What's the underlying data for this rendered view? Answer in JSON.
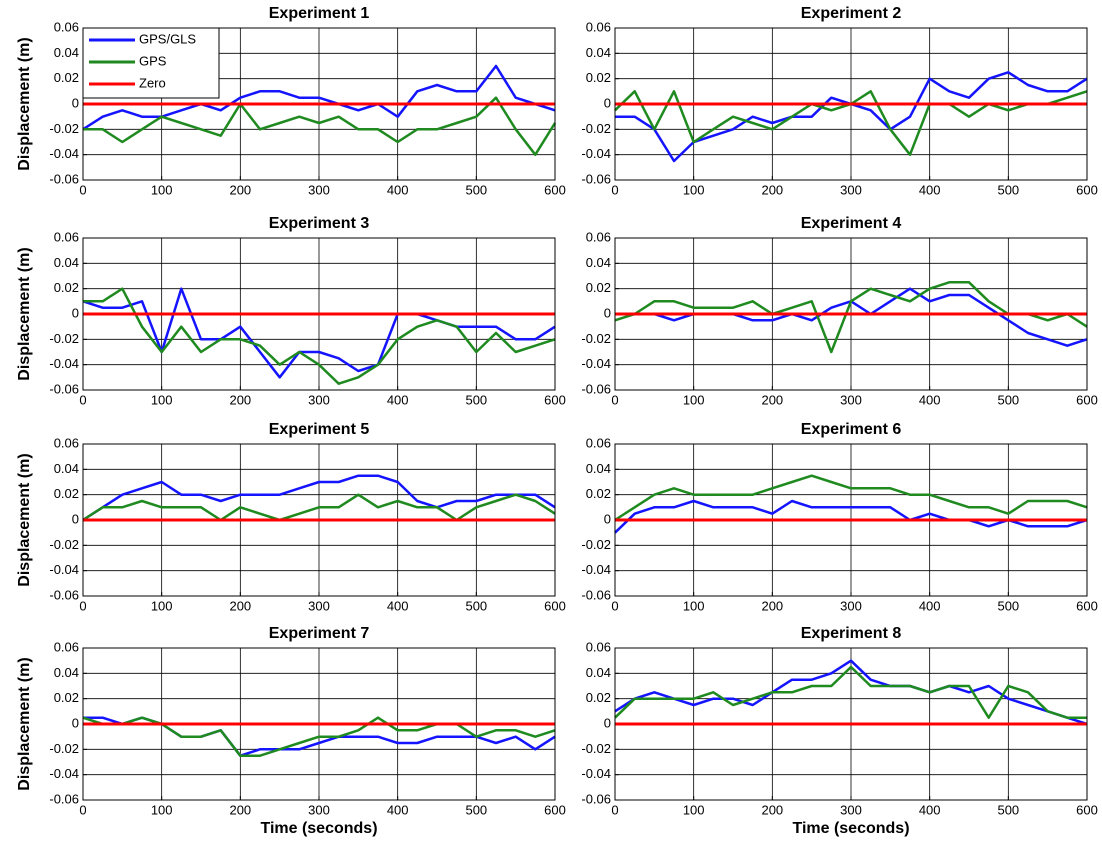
{
  "chart_data": [
    {
      "type": "line",
      "title": "Experiment 1",
      "ylabel": "Displacement (m)",
      "legend": "upper left",
      "grid": true,
      "x": [
        0,
        25,
        50,
        75,
        100,
        125,
        150,
        175,
        200,
        225,
        250,
        275,
        300,
        325,
        350,
        375,
        400,
        425,
        450,
        475,
        500,
        525,
        550,
        575,
        600
      ],
      "xlim": [
        0,
        600
      ],
      "xticks": [
        0,
        100,
        200,
        300,
        400,
        500,
        600
      ],
      "ylim": [
        -0.06,
        0.06
      ],
      "yticks": [
        -0.06,
        -0.04,
        -0.02,
        0,
        0.02,
        0.04,
        0.06
      ],
      "series": [
        {
          "name": "GPS/GLS",
          "color": "#1414ff",
          "values": [
            -0.02,
            -0.01,
            -0.005,
            -0.01,
            -0.01,
            -0.005,
            0,
            -0.005,
            0.005,
            0.01,
            0.01,
            0.005,
            0.005,
            0,
            -0.005,
            0,
            -0.01,
            0.01,
            0.015,
            0.01,
            0.01,
            0.03,
            0.005,
            0,
            -0.005
          ]
        },
        {
          "name": "GPS",
          "color": "#1f8a1f",
          "values": [
            -0.02,
            -0.02,
            -0.03,
            -0.02,
            -0.01,
            -0.015,
            -0.02,
            -0.025,
            0,
            -0.02,
            -0.015,
            -0.01,
            -0.015,
            -0.01,
            -0.02,
            -0.02,
            -0.03,
            -0.02,
            -0.02,
            -0.015,
            -0.01,
            0.005,
            -0.02,
            -0.04,
            -0.015
          ]
        },
        {
          "name": "Zero",
          "color": "#ff0000",
          "values": [
            0,
            0,
            0,
            0,
            0,
            0,
            0,
            0,
            0,
            0,
            0,
            0,
            0,
            0,
            0,
            0,
            0,
            0,
            0,
            0,
            0,
            0,
            0,
            0,
            0
          ]
        }
      ]
    },
    {
      "type": "line",
      "title": "Experiment 2",
      "grid": true,
      "x": [
        0,
        25,
        50,
        75,
        100,
        125,
        150,
        175,
        200,
        225,
        250,
        275,
        300,
        325,
        350,
        375,
        400,
        425,
        450,
        475,
        500,
        525,
        550,
        575,
        600
      ],
      "xlim": [
        0,
        600
      ],
      "xticks": [
        0,
        100,
        200,
        300,
        400,
        500,
        600
      ],
      "ylim": [
        -0.06,
        0.06
      ],
      "yticks": [
        -0.06,
        -0.04,
        -0.02,
        0,
        0.02,
        0.04,
        0.06
      ],
      "series": [
        {
          "color": "#1414ff",
          "values": [
            -0.01,
            -0.01,
            -0.02,
            -0.045,
            -0.03,
            -0.025,
            -0.02,
            -0.01,
            -0.015,
            -0.01,
            -0.01,
            0.005,
            0,
            -0.005,
            -0.02,
            -0.01,
            0.02,
            0.01,
            0.005,
            0.02,
            0.025,
            0.015,
            0.01,
            0.01,
            0.02
          ]
        },
        {
          "color": "#1f8a1f",
          "values": [
            -0.005,
            0.01,
            -0.02,
            0.01,
            -0.03,
            -0.02,
            -0.01,
            -0.015,
            -0.02,
            -0.01,
            0,
            -0.005,
            0,
            0.01,
            -0.02,
            -0.04,
            0,
            0,
            -0.01,
            0,
            -0.005,
            0,
            0,
            0.005,
            0.01
          ]
        },
        {
          "color": "#ff0000",
          "values": [
            0,
            0,
            0,
            0,
            0,
            0,
            0,
            0,
            0,
            0,
            0,
            0,
            0,
            0,
            0,
            0,
            0,
            0,
            0,
            0,
            0,
            0,
            0,
            0,
            0
          ]
        }
      ]
    },
    {
      "type": "line",
      "title": "Experiment 3",
      "ylabel": "Displacement (m)",
      "grid": true,
      "x": [
        0,
        25,
        50,
        75,
        100,
        125,
        150,
        175,
        200,
        225,
        250,
        275,
        300,
        325,
        350,
        375,
        400,
        425,
        450,
        475,
        500,
        525,
        550,
        575,
        600
      ],
      "xlim": [
        0,
        600
      ],
      "xticks": [
        0,
        100,
        200,
        300,
        400,
        500,
        600
      ],
      "ylim": [
        -0.06,
        0.06
      ],
      "yticks": [
        -0.06,
        -0.04,
        -0.02,
        0,
        0.02,
        0.04,
        0.06
      ],
      "series": [
        {
          "color": "#1414ff",
          "values": [
            0.01,
            0.005,
            0.005,
            0.01,
            -0.03,
            0.02,
            -0.02,
            -0.02,
            -0.01,
            -0.03,
            -0.05,
            -0.03,
            -0.03,
            -0.035,
            -0.045,
            -0.04,
            0,
            0,
            -0.005,
            -0.01,
            -0.01,
            -0.01,
            -0.02,
            -0.02,
            -0.01
          ]
        },
        {
          "color": "#1f8a1f",
          "values": [
            0.01,
            0.01,
            0.02,
            -0.01,
            -0.03,
            -0.01,
            -0.03,
            -0.02,
            -0.02,
            -0.025,
            -0.04,
            -0.03,
            -0.04,
            -0.055,
            -0.05,
            -0.04,
            -0.02,
            -0.01,
            -0.005,
            -0.01,
            -0.03,
            -0.015,
            -0.03,
            -0.025,
            -0.02
          ]
        },
        {
          "color": "#ff0000",
          "values": [
            0,
            0,
            0,
            0,
            0,
            0,
            0,
            0,
            0,
            0,
            0,
            0,
            0,
            0,
            0,
            0,
            0,
            0,
            0,
            0,
            0,
            0,
            0,
            0,
            0
          ]
        }
      ]
    },
    {
      "type": "line",
      "title": "Experiment 4",
      "grid": true,
      "x": [
        0,
        25,
        50,
        75,
        100,
        125,
        150,
        175,
        200,
        225,
        250,
        275,
        300,
        325,
        350,
        375,
        400,
        425,
        450,
        475,
        500,
        525,
        550,
        575,
        600
      ],
      "xlim": [
        0,
        600
      ],
      "xticks": [
        0,
        100,
        200,
        300,
        400,
        500,
        600
      ],
      "ylim": [
        -0.06,
        0.06
      ],
      "yticks": [
        -0.06,
        -0.04,
        -0.02,
        0,
        0.02,
        0.04,
        0.06
      ],
      "series": [
        {
          "color": "#1414ff",
          "values": [
            0,
            0,
            0,
            -0.005,
            0,
            0,
            0,
            -0.005,
            -0.005,
            0,
            -0.005,
            0.005,
            0.01,
            0,
            0.01,
            0.02,
            0.01,
            0.015,
            0.015,
            0.005,
            -0.005,
            -0.015,
            -0.02,
            -0.025,
            -0.02
          ]
        },
        {
          "color": "#1f8a1f",
          "values": [
            -0.005,
            0,
            0.01,
            0.01,
            0.005,
            0.005,
            0.005,
            0.01,
            0,
            0.005,
            0.01,
            -0.03,
            0.01,
            0.02,
            0.015,
            0.01,
            0.02,
            0.025,
            0.025,
            0.01,
            0,
            0,
            -0.005,
            0,
            -0.01
          ]
        },
        {
          "color": "#ff0000",
          "values": [
            0,
            0,
            0,
            0,
            0,
            0,
            0,
            0,
            0,
            0,
            0,
            0,
            0,
            0,
            0,
            0,
            0,
            0,
            0,
            0,
            0,
            0,
            0,
            0,
            0
          ]
        }
      ]
    },
    {
      "type": "line",
      "title": "Experiment 5",
      "ylabel": "Displacement (m)",
      "grid": true,
      "x": [
        0,
        25,
        50,
        75,
        100,
        125,
        150,
        175,
        200,
        225,
        250,
        275,
        300,
        325,
        350,
        375,
        400,
        425,
        450,
        475,
        500,
        525,
        550,
        575,
        600
      ],
      "xlim": [
        0,
        600
      ],
      "xticks": [
        0,
        100,
        200,
        300,
        400,
        500,
        600
      ],
      "ylim": [
        -0.06,
        0.06
      ],
      "yticks": [
        -0.06,
        -0.04,
        -0.02,
        0,
        0.02,
        0.04,
        0.06
      ],
      "series": [
        {
          "color": "#1414ff",
          "values": [
            0,
            0.01,
            0.02,
            0.025,
            0.03,
            0.02,
            0.02,
            0.015,
            0.02,
            0.02,
            0.02,
            0.025,
            0.03,
            0.03,
            0.035,
            0.035,
            0.03,
            0.015,
            0.01,
            0.015,
            0.015,
            0.02,
            0.02,
            0.02,
            0.01
          ]
        },
        {
          "color": "#1f8a1f",
          "values": [
            0,
            0.01,
            0.01,
            0.015,
            0.01,
            0.01,
            0.01,
            0,
            0.01,
            0.005,
            0,
            0.005,
            0.01,
            0.01,
            0.02,
            0.01,
            0.015,
            0.01,
            0.01,
            0,
            0.01,
            0.015,
            0.02,
            0.015,
            0.005
          ]
        },
        {
          "color": "#ff0000",
          "values": [
            0,
            0,
            0,
            0,
            0,
            0,
            0,
            0,
            0,
            0,
            0,
            0,
            0,
            0,
            0,
            0,
            0,
            0,
            0,
            0,
            0,
            0,
            0,
            0,
            0
          ]
        }
      ]
    },
    {
      "type": "line",
      "title": "Experiment 6",
      "grid": true,
      "x": [
        0,
        25,
        50,
        75,
        100,
        125,
        150,
        175,
        200,
        225,
        250,
        275,
        300,
        325,
        350,
        375,
        400,
        425,
        450,
        475,
        500,
        525,
        550,
        575,
        600
      ],
      "xlim": [
        0,
        600
      ],
      "xticks": [
        0,
        100,
        200,
        300,
        400,
        500,
        600
      ],
      "ylim": [
        -0.06,
        0.06
      ],
      "yticks": [
        -0.06,
        -0.04,
        -0.02,
        0,
        0.02,
        0.04,
        0.06
      ],
      "series": [
        {
          "color": "#1414ff",
          "values": [
            -0.01,
            0.005,
            0.01,
            0.01,
            0.015,
            0.01,
            0.01,
            0.01,
            0.005,
            0.015,
            0.01,
            0.01,
            0.01,
            0.01,
            0.01,
            0,
            0.005,
            0,
            0,
            -0.005,
            0,
            -0.005,
            -0.005,
            -0.005,
            0
          ]
        },
        {
          "color": "#1f8a1f",
          "values": [
            0,
            0.01,
            0.02,
            0.025,
            0.02,
            0.02,
            0.02,
            0.02,
            0.025,
            0.03,
            0.035,
            0.03,
            0.025,
            0.025,
            0.025,
            0.02,
            0.02,
            0.015,
            0.01,
            0.01,
            0.005,
            0.015,
            0.015,
            0.015,
            0.01
          ]
        },
        {
          "color": "#ff0000",
          "values": [
            0,
            0,
            0,
            0,
            0,
            0,
            0,
            0,
            0,
            0,
            0,
            0,
            0,
            0,
            0,
            0,
            0,
            0,
            0,
            0,
            0,
            0,
            0,
            0,
            0
          ]
        }
      ]
    },
    {
      "type": "line",
      "title": "Experiment 7",
      "ylabel": "Displacement (m)",
      "xlabel": "Time (seconds)",
      "grid": true,
      "x": [
        0,
        25,
        50,
        75,
        100,
        125,
        150,
        175,
        200,
        225,
        250,
        275,
        300,
        325,
        350,
        375,
        400,
        425,
        450,
        475,
        500,
        525,
        550,
        575,
        600
      ],
      "xlim": [
        0,
        600
      ],
      "xticks": [
        0,
        100,
        200,
        300,
        400,
        500,
        600
      ],
      "ylim": [
        -0.06,
        0.06
      ],
      "yticks": [
        -0.06,
        -0.04,
        -0.02,
        0,
        0.02,
        0.04,
        0.06
      ],
      "series": [
        {
          "color": "#1414ff",
          "values": [
            0.005,
            0.005,
            0,
            0.005,
            0,
            -0.01,
            -0.01,
            -0.005,
            -0.025,
            -0.02,
            -0.02,
            -0.02,
            -0.015,
            -0.01,
            -0.01,
            -0.01,
            -0.015,
            -0.015,
            -0.01,
            -0.01,
            -0.01,
            -0.015,
            -0.01,
            -0.02,
            -0.01
          ]
        },
        {
          "color": "#1f8a1f",
          "values": [
            0.005,
            0,
            0,
            0.005,
            0,
            -0.01,
            -0.01,
            -0.005,
            -0.025,
            -0.025,
            -0.02,
            -0.015,
            -0.01,
            -0.01,
            -0.005,
            0.005,
            -0.005,
            -0.005,
            0,
            0,
            -0.01,
            -0.005,
            -0.005,
            -0.01,
            -0.005
          ]
        },
        {
          "color": "#ff0000",
          "values": [
            0,
            0,
            0,
            0,
            0,
            0,
            0,
            0,
            0,
            0,
            0,
            0,
            0,
            0,
            0,
            0,
            0,
            0,
            0,
            0,
            0,
            0,
            0,
            0,
            0
          ]
        }
      ]
    },
    {
      "type": "line",
      "title": "Experiment 8",
      "xlabel": "Time (seconds)",
      "grid": true,
      "x": [
        0,
        25,
        50,
        75,
        100,
        125,
        150,
        175,
        200,
        225,
        250,
        275,
        300,
        325,
        350,
        375,
        400,
        425,
        450,
        475,
        500,
        525,
        550,
        575,
        600
      ],
      "xlim": [
        0,
        600
      ],
      "xticks": [
        0,
        100,
        200,
        300,
        400,
        500,
        600
      ],
      "ylim": [
        -0.06,
        0.06
      ],
      "yticks": [
        -0.06,
        -0.04,
        -0.02,
        0,
        0.02,
        0.04,
        0.06
      ],
      "series": [
        {
          "color": "#1414ff",
          "values": [
            0.01,
            0.02,
            0.025,
            0.02,
            0.015,
            0.02,
            0.02,
            0.015,
            0.025,
            0.035,
            0.035,
            0.04,
            0.05,
            0.035,
            0.03,
            0.03,
            0.025,
            0.03,
            0.025,
            0.03,
            0.02,
            0.015,
            0.01,
            0.005,
            0
          ]
        },
        {
          "color": "#1f8a1f",
          "values": [
            0.005,
            0.02,
            0.02,
            0.02,
            0.02,
            0.025,
            0.015,
            0.02,
            0.025,
            0.025,
            0.03,
            0.03,
            0.045,
            0.03,
            0.03,
            0.03,
            0.025,
            0.03,
            0.03,
            0.005,
            0.03,
            0.025,
            0.01,
            0.005,
            0.005
          ]
        },
        {
          "color": "#ff0000",
          "values": [
            0,
            0,
            0,
            0,
            0,
            0,
            0,
            0,
            0,
            0,
            0,
            0,
            0,
            0,
            0,
            0,
            0,
            0,
            0,
            0,
            0,
            0,
            0,
            0,
            0
          ]
        }
      ]
    }
  ]
}
